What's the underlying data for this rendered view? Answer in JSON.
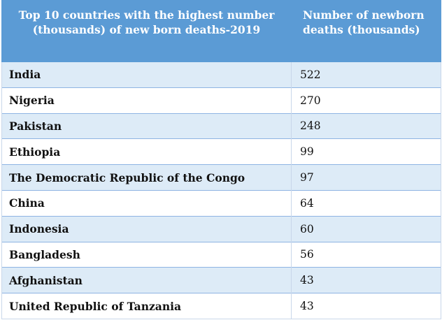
{
  "chart_data": {
    "type": "table",
    "columns": [
      "Top 10 countries with the highest number (thousands) of new born deaths-2019",
      "Number of newborn deaths (thousands)"
    ],
    "rows": [
      {
        "country": "India",
        "deaths": "522"
      },
      {
        "country": "Nigeria",
        "deaths": "270"
      },
      {
        "country": "Pakistan",
        "deaths": "248"
      },
      {
        "country": "Ethiopia",
        "deaths": "99"
      },
      {
        "country": "The Democratic Republic of the Congo",
        "deaths": "97"
      },
      {
        "country": "China",
        "deaths": "64"
      },
      {
        "country": "Indonesia",
        "deaths": "60"
      },
      {
        "country": "Bangladesh",
        "deaths": "56"
      },
      {
        "country": "Afghanistan",
        "deaths": "43"
      },
      {
        "country": "United Republic of Tanzania",
        "deaths": "43"
      }
    ]
  },
  "colors": {
    "header_bg": "#5b9bd5",
    "header_text": "#ffffff",
    "row_band": "#ddebf7",
    "row_plain": "#ffffff",
    "divider": "#8eb4e3"
  }
}
